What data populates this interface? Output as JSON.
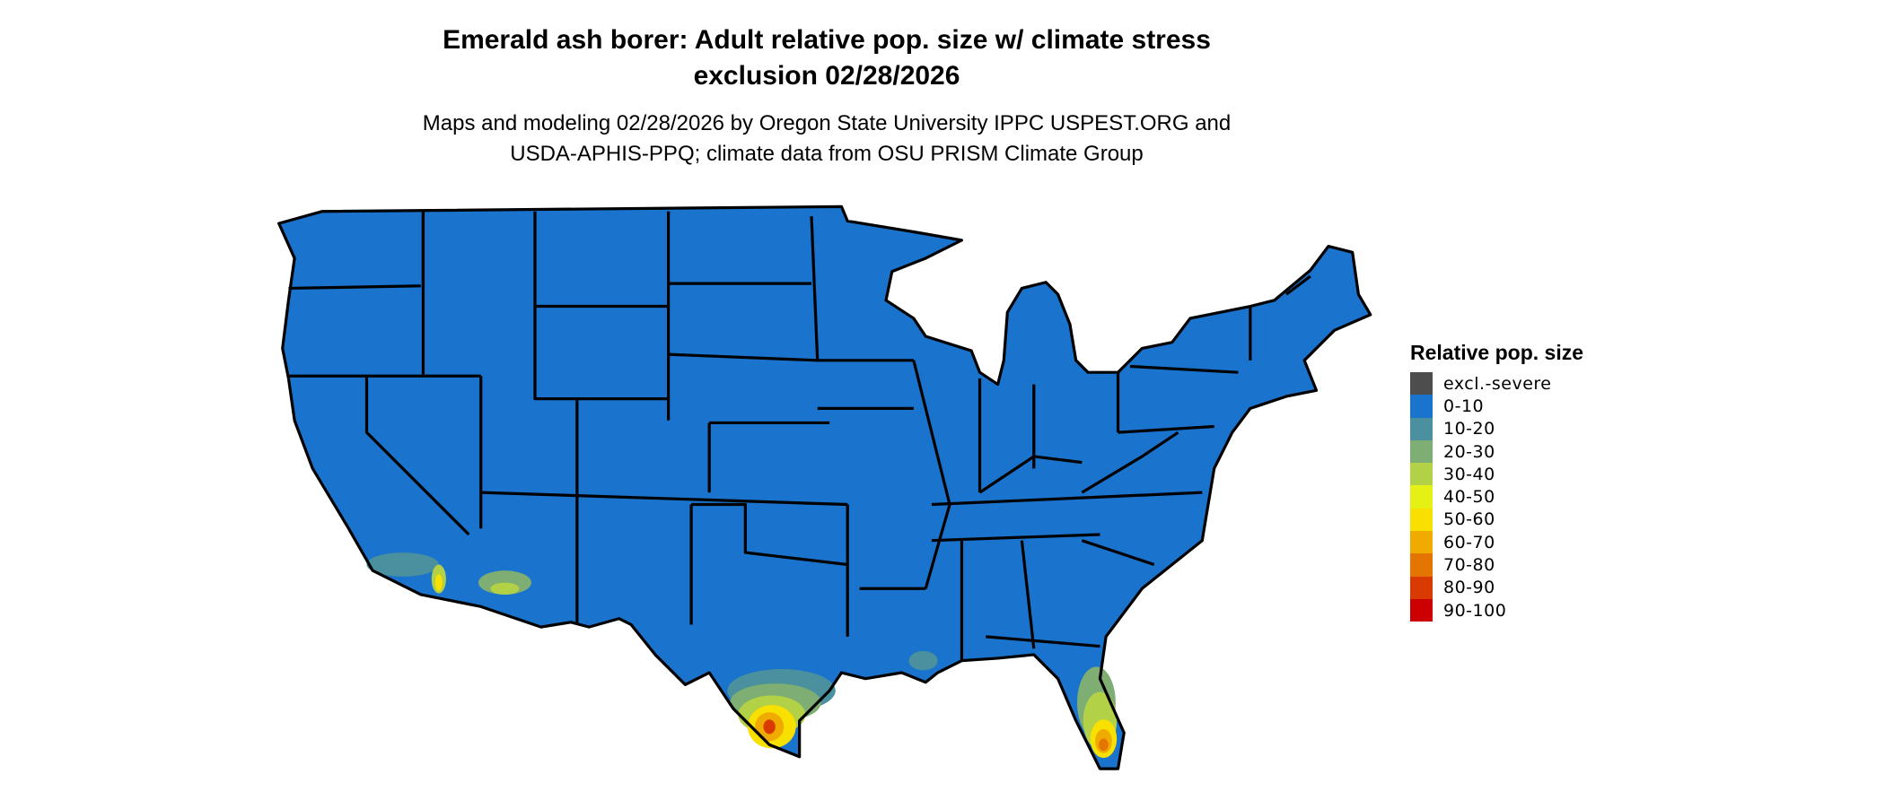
{
  "title": {
    "line1": "Emerald ash borer: Adult relative pop. size w/ climate stress",
    "line2": "exclusion 02/28/2026"
  },
  "subtitle": {
    "line1": "Maps and modeling 02/28/2026 by Oregon State University IPPC USPEST.ORG and",
    "line2": "USDA-APHIS-PPQ; climate data from OSU PRISM Climate Group"
  },
  "map": {
    "region": "Contiguous United States",
    "background_class": "0-10",
    "higher_classes_regions": [
      "Southern Florida",
      "South Texas Gulf coast",
      "Southern California / Arizona desert",
      "Louisiana coast"
    ]
  },
  "legend": {
    "title": "Relative pop. size",
    "items": [
      {
        "label": "excl.-severe",
        "color": "#4d4d4d"
      },
      {
        "label": "0-10",
        "color": "#1a73cc"
      },
      {
        "label": "10-20",
        "color": "#4a909e"
      },
      {
        "label": "20-30",
        "color": "#7eae73"
      },
      {
        "label": "30-40",
        "color": "#b3d147"
      },
      {
        "label": "40-50",
        "color": "#e5f015"
      },
      {
        "label": "50-60",
        "color": "#f8e000"
      },
      {
        "label": "60-70",
        "color": "#efab00"
      },
      {
        "label": "70-80",
        "color": "#e37500"
      },
      {
        "label": "80-90",
        "color": "#d93a00"
      },
      {
        "label": "90-100",
        "color": "#cc0000"
      }
    ]
  }
}
